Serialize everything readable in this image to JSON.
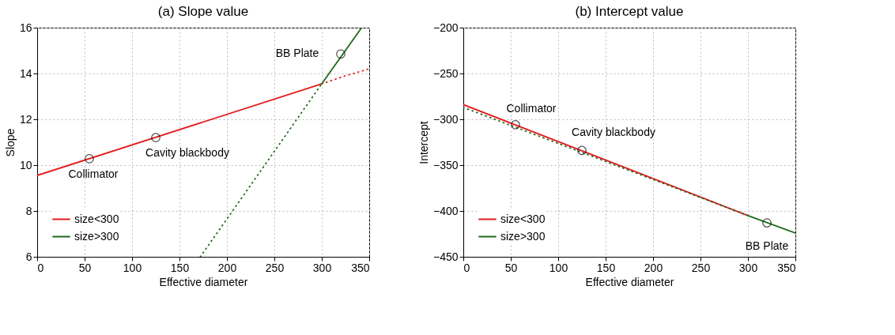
{
  "chart_data": [
    {
      "type": "line",
      "title": "(a) Slope value",
      "xlabel": "Effective diameter",
      "ylabel": "Slope",
      "xlim": [
        0,
        350
      ],
      "ylim": [
        6,
        16
      ],
      "xticks": [
        0,
        50,
        100,
        150,
        200,
        250,
        300,
        350
      ],
      "yticks": [
        6,
        8,
        10,
        12,
        14,
        16
      ],
      "grid": true,
      "legend": "bottom left",
      "series": [
        {
          "name": "size<300",
          "color": "#e41a1c",
          "x": [
            0,
            300
          ],
          "values": [
            9.55,
            13.55
          ],
          "line_style": "solid"
        },
        {
          "color": "#e41a1c",
          "x": [
            300,
            325,
            350
          ],
          "values": [
            13.55,
            13.9,
            14.2
          ],
          "line_style": "dotted"
        },
        {
          "name": "size>300",
          "color": "#1a6b1a",
          "x": [
            300,
            342
          ],
          "values": [
            13.55,
            16
          ],
          "line_style": "solid"
        },
        {
          "color": "#1a6b1a",
          "x": [
            172,
            300
          ],
          "values": [
            6,
            13.55
          ],
          "line_style": "dotted"
        },
        {
          "type": "scatter",
          "color": "#000000",
          "marker": "circle",
          "x": [
            55,
            125,
            320
          ],
          "values": [
            10.28,
            11.2,
            14.85
          ]
        }
      ],
      "annotations": [
        {
          "text": "Collimator",
          "x": 55,
          "y": 10.28
        },
        {
          "text": "Cavity blackbody",
          "x": 125,
          "y": 11.2
        },
        {
          "text": "BB Plate",
          "x": 320,
          "y": 14.85
        }
      ]
    },
    {
      "type": "line",
      "title": "(b) Intercept value",
      "xlabel": "Effective diameter",
      "ylabel": "Intercept",
      "xlim": [
        0,
        350
      ],
      "ylim": [
        -450,
        -200
      ],
      "xticks": [
        0,
        50,
        100,
        150,
        200,
        250,
        300,
        350
      ],
      "yticks": [
        -450,
        -400,
        -350,
        -300,
        -250,
        -200
      ],
      "grid": true,
      "legend": "bottom left",
      "series": [
        {
          "name": "size<300",
          "color": "#e41a1c",
          "x": [
            0,
            300
          ],
          "values": [
            -284,
            -405
          ],
          "line_style": "solid"
        },
        {
          "color": "#1a6b1a",
          "x": [
            0,
            300
          ],
          "values": [
            -287,
            -405
          ],
          "line_style": "dotted"
        },
        {
          "name": "size>300",
          "color": "#1a6b1a",
          "x": [
            300,
            350
          ],
          "values": [
            -405,
            -424
          ],
          "line_style": "solid"
        },
        {
          "type": "scatter",
          "color": "#000000",
          "marker": "circle",
          "x": [
            55,
            125,
            320
          ],
          "values": [
            -306,
            -334,
            -413
          ]
        }
      ],
      "annotations": [
        {
          "text": "Collimator",
          "x": 55,
          "y": -306
        },
        {
          "text": "Cavity blackbody",
          "x": 125,
          "y": -334
        },
        {
          "text": "BB Plate",
          "x": 320,
          "y": -413
        }
      ]
    }
  ]
}
